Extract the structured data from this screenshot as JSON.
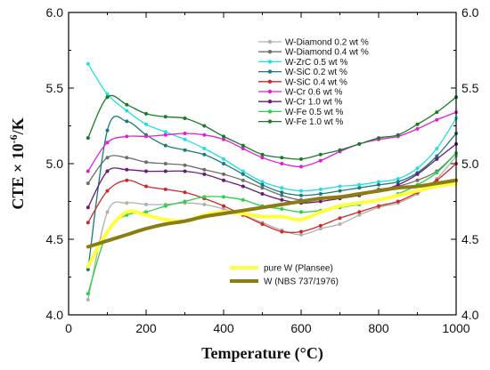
{
  "chart_data": {
    "type": "line",
    "xlabel": "Temperature (°C)",
    "ylabel_prefix": "CTE × 10",
    "ylabel_exp": "-6",
    "ylabel_suffix": "/K",
    "xlim": [
      0,
      1000
    ],
    "ylim": [
      4.0,
      6.0
    ],
    "xticks": [
      "0",
      "200",
      "400",
      "600",
      "800",
      "1000"
    ],
    "xtick_values": [
      0,
      200,
      400,
      600,
      800,
      1000
    ],
    "yticks": [
      "4.0",
      "4.5",
      "5.0",
      "5.5",
      "6.0"
    ],
    "ytick_values": [
      4.0,
      4.5,
      5.0,
      5.5,
      6.0
    ],
    "grid": false,
    "series": [
      {
        "name": "W-Diamond 0.2 wt %",
        "color": "#b0b0b0",
        "marker": true,
        "x": [
          50,
          100,
          150,
          200,
          250,
          300,
          350,
          400,
          450,
          500,
          550,
          600,
          650,
          700,
          750,
          800,
          850,
          900,
          950,
          1000
        ],
        "y": [
          4.1,
          4.68,
          4.74,
          4.73,
          4.73,
          4.74,
          4.73,
          4.7,
          4.66,
          4.61,
          4.56,
          4.53,
          4.57,
          4.6,
          4.66,
          4.71,
          4.74,
          4.8,
          4.9,
          5.05
        ]
      },
      {
        "name": "W-Diamond 0.4 wt %",
        "color": "#6e6e6e",
        "marker": true,
        "x": [
          50,
          100,
          150,
          200,
          250,
          300,
          350,
          400,
          450,
          500,
          550,
          600,
          650,
          700,
          750,
          800,
          850,
          900,
          950,
          1000
        ],
        "y": [
          4.87,
          5.04,
          5.04,
          5.01,
          5.0,
          4.99,
          4.96,
          4.93,
          4.89,
          4.84,
          4.79,
          4.76,
          4.77,
          4.78,
          4.8,
          4.83,
          4.85,
          4.89,
          4.95,
          5.07
        ]
      },
      {
        "name": "W-ZrC 0.5 wt %",
        "color": "#22e0e0",
        "marker": true,
        "x": [
          50,
          100,
          150,
          200,
          250,
          300,
          350,
          400,
          450,
          500,
          550,
          600,
          650,
          700,
          750,
          800,
          850,
          900,
          950,
          1000
        ],
        "y": [
          5.66,
          5.46,
          5.35,
          5.26,
          5.21,
          5.16,
          5.1,
          5.03,
          4.95,
          4.88,
          4.84,
          4.82,
          4.83,
          4.85,
          4.86,
          4.88,
          4.9,
          4.97,
          5.1,
          5.3
        ]
      },
      {
        "name": "W-SiC 0.2 wt %",
        "color": "#1a7a7a",
        "marker": true,
        "x": [
          50,
          100,
          150,
          200,
          250,
          300,
          350,
          400,
          450,
          500,
          550,
          600,
          650,
          700,
          750,
          800,
          850,
          900,
          950,
          1000
        ],
        "y": [
          4.3,
          5.22,
          5.28,
          5.19,
          5.12,
          5.09,
          5.06,
          5.0,
          4.93,
          4.86,
          4.81,
          4.79,
          4.8,
          4.82,
          4.84,
          4.86,
          4.88,
          4.94,
          5.05,
          5.2
        ]
      },
      {
        "name": "W-SiC 0.4 wt %",
        "color": "#cc2a2a",
        "marker": true,
        "x": [
          50,
          100,
          150,
          200,
          250,
          300,
          350,
          400,
          450,
          500,
          550,
          600,
          650,
          700,
          750,
          800,
          850,
          900,
          950,
          1000
        ],
        "y": [
          4.61,
          4.82,
          4.89,
          4.85,
          4.83,
          4.81,
          4.77,
          4.72,
          4.66,
          4.6,
          4.55,
          4.55,
          4.59,
          4.64,
          4.68,
          4.72,
          4.75,
          4.81,
          4.89,
          5.0
        ]
      },
      {
        "name": "W-Cr 0.6 wt %",
        "color": "#e020d0",
        "marker": true,
        "x": [
          50,
          100,
          150,
          200,
          250,
          300,
          350,
          400,
          450,
          500,
          550,
          600,
          650,
          700,
          750,
          800,
          850,
          900,
          950,
          1000
        ],
        "y": [
          4.95,
          5.14,
          5.18,
          5.18,
          5.19,
          5.2,
          5.19,
          5.16,
          5.1,
          5.04,
          5.0,
          4.98,
          5.02,
          5.08,
          5.13,
          5.16,
          5.18,
          5.23,
          5.29,
          5.34
        ]
      },
      {
        "name": "W-Cr 1.0 wt %",
        "color": "#6a1a7a",
        "marker": true,
        "x": [
          50,
          100,
          150,
          200,
          250,
          300,
          350,
          400,
          450,
          500,
          550,
          600,
          650,
          700,
          750,
          800,
          850,
          900,
          950,
          1000
        ],
        "y": [
          4.71,
          4.95,
          4.96,
          4.95,
          4.95,
          4.95,
          4.93,
          4.89,
          4.85,
          4.8,
          4.76,
          4.74,
          4.75,
          4.77,
          4.79,
          4.82,
          4.86,
          4.93,
          5.03,
          5.13
        ]
      },
      {
        "name": "W-Fe 0.5 wt %",
        "color": "#2ad04a",
        "marker": true,
        "x": [
          50,
          100,
          150,
          200,
          250,
          300,
          350,
          400,
          450,
          500,
          550,
          600,
          650,
          700,
          750,
          800,
          850,
          900,
          950,
          1000
        ],
        "y": [
          4.14,
          4.55,
          4.66,
          4.68,
          4.72,
          4.75,
          4.78,
          4.78,
          4.76,
          4.72,
          4.7,
          4.68,
          4.69,
          4.71,
          4.73,
          4.76,
          4.8,
          4.86,
          4.94,
          5.07
        ]
      },
      {
        "name": "W-Fe 1.0 wt %",
        "color": "#1a7a2a",
        "marker": true,
        "x": [
          50,
          100,
          150,
          200,
          250,
          300,
          350,
          400,
          450,
          500,
          550,
          600,
          650,
          700,
          750,
          800,
          850,
          900,
          950,
          1000
        ],
        "y": [
          5.17,
          5.44,
          5.39,
          5.33,
          5.31,
          5.3,
          5.25,
          5.18,
          5.12,
          5.06,
          5.04,
          5.03,
          5.06,
          5.09,
          5.13,
          5.17,
          5.19,
          5.26,
          5.34,
          5.44
        ]
      },
      {
        "name": "pure W (Plansee)",
        "color": "#ffff40",
        "marker": false,
        "width": 4,
        "x": [
          50,
          100,
          150,
          200,
          250,
          300,
          350,
          400,
          450,
          500,
          550,
          600,
          650,
          700,
          750,
          800,
          850,
          900,
          950,
          1000
        ],
        "y": [
          4.32,
          4.55,
          4.68,
          4.66,
          4.63,
          4.62,
          4.66,
          4.68,
          4.67,
          4.65,
          4.65,
          4.63,
          4.68,
          4.72,
          4.74,
          4.76,
          4.79,
          4.82,
          4.85,
          4.87
        ]
      },
      {
        "name": "W (NBS 737/1976)",
        "color": "#8a7d14",
        "marker": false,
        "width": 4,
        "x": [
          50,
          100,
          150,
          200,
          250,
          300,
          350,
          400,
          450,
          500,
          550,
          600,
          650,
          700,
          750,
          800,
          850,
          900,
          950,
          1000
        ],
        "y": [
          4.45,
          4.49,
          4.53,
          4.57,
          4.6,
          4.62,
          4.65,
          4.67,
          4.69,
          4.71,
          4.73,
          4.75,
          4.77,
          4.78,
          4.8,
          4.82,
          4.84,
          4.85,
          4.87,
          4.89
        ]
      }
    ],
    "legend": {
      "main_entries": [
        0,
        1,
        2,
        3,
        4,
        5,
        6,
        7,
        8
      ],
      "bottom_entries": [
        9,
        10
      ]
    }
  }
}
